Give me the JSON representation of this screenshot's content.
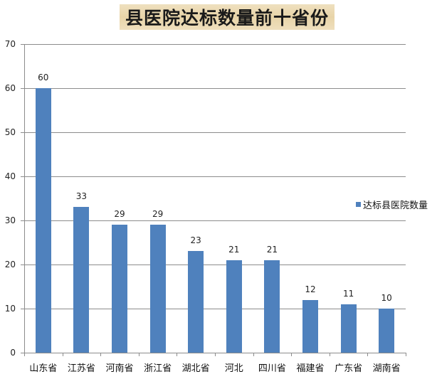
{
  "chart_data": {
    "type": "bar",
    "title": "县医院达标数量前十省份",
    "xlabel": "",
    "ylabel": "",
    "categories": [
      "山东省",
      "江苏省",
      "河南省",
      "浙江省",
      "湖北省",
      "河北",
      "四川省",
      "福建省",
      "广东省",
      "湖南省"
    ],
    "series": [
      {
        "name": "达标县医院数量",
        "values": [
          60,
          33,
          29,
          29,
          23,
          21,
          21,
          12,
          11,
          10
        ],
        "color": "#4f81bd"
      }
    ],
    "ylim": [
      0,
      70
    ],
    "yticks": [
      0,
      10,
      20,
      30,
      40,
      50,
      60,
      70
    ],
    "grid": true,
    "legend_position": "right",
    "data_labels": true
  }
}
